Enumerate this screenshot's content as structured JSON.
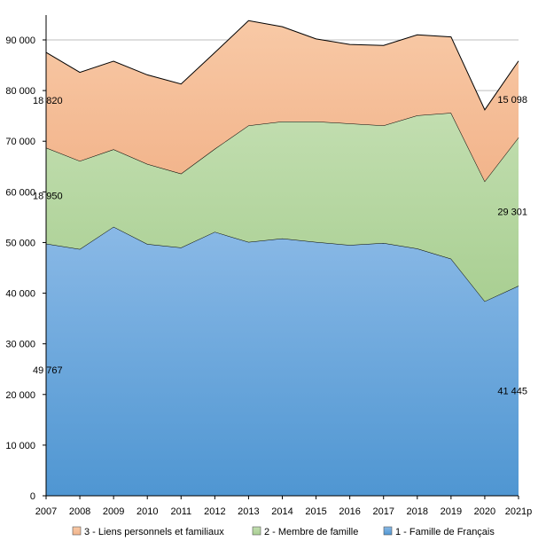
{
  "chart_data": {
    "type": "area",
    "stacked": true,
    "x": [
      "2007",
      "2008",
      "2009",
      "2010",
      "2011",
      "2012",
      "2013",
      "2014",
      "2015",
      "2016",
      "2017",
      "2018",
      "2019",
      "2020",
      "2021p"
    ],
    "series": [
      {
        "name": "1 - Famille de Français",
        "color": "#6aa7dc",
        "values": [
          49767,
          48700,
          53100,
          49700,
          49000,
          52100,
          50100,
          50800,
          50100,
          49500,
          49900,
          48800,
          46800,
          38400,
          41445
        ]
      },
      {
        "name": "2 - Membre de famille",
        "color": "#b5d7a0",
        "values": [
          18950,
          17400,
          15300,
          15800,
          14600,
          16400,
          23000,
          23100,
          23800,
          24000,
          23200,
          26300,
          28800,
          23700,
          29301
        ]
      },
      {
        "name": "3 - Liens personnels et familiaux",
        "color": "#f5bf9a",
        "values": [
          18820,
          17500,
          17400,
          17600,
          17700,
          19000,
          20700,
          18700,
          16300,
          15600,
          15800,
          15900,
          15000,
          14100,
          15098
        ]
      }
    ],
    "data_labels": [
      {
        "series": 2,
        "index": 0,
        "text": "18 820"
      },
      {
        "series": 1,
        "index": 0,
        "text": "18 950"
      },
      {
        "series": 0,
        "index": 0,
        "text": "49 767"
      },
      {
        "series": 2,
        "index": 14,
        "text": "15 098"
      },
      {
        "series": 1,
        "index": 14,
        "text": "29 301"
      },
      {
        "series": 0,
        "index": 14,
        "text": "41 445"
      }
    ],
    "ylim": [
      0,
      90000
    ],
    "yticks": [
      0,
      10000,
      20000,
      30000,
      40000,
      50000,
      60000,
      70000,
      80000,
      90000
    ],
    "ytick_labels": [
      "0",
      "10 000",
      "20 000",
      "30 000",
      "40 000",
      "50 000",
      "60 000",
      "70 000",
      "80 000",
      "90 000"
    ],
    "grid": true,
    "legend": {
      "placement": "bottom",
      "order": [
        2,
        1,
        0
      ]
    },
    "title": "",
    "xlabel": "",
    "ylabel": ""
  }
}
